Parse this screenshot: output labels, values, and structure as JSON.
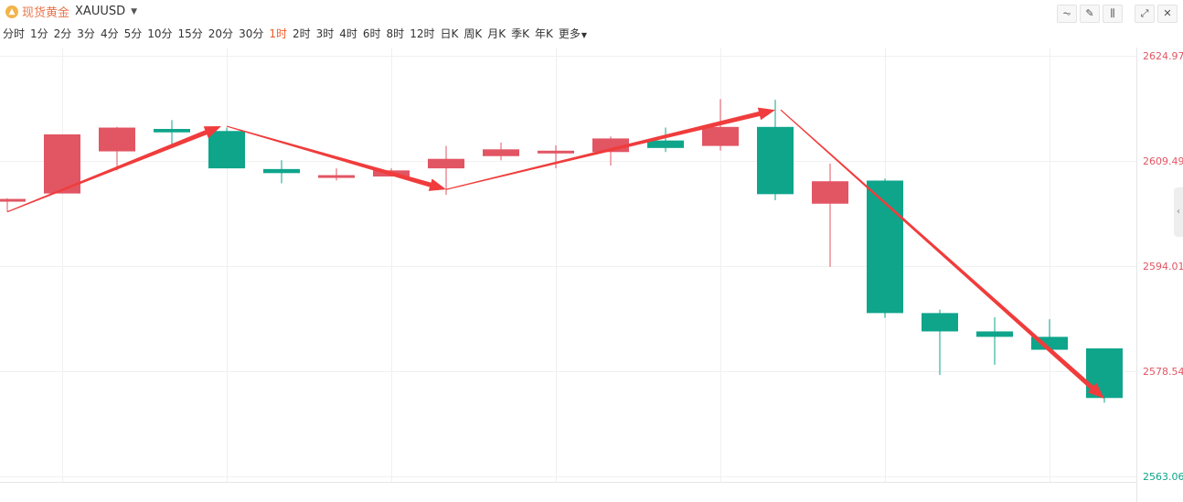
{
  "header": {
    "coin_icon": "gold-coin-icon",
    "instrument_cn": "现货黄金",
    "instrument_code": "XAUUSD",
    "tools": [
      "line-chart-icon",
      "draw-pen-icon",
      "candle-settings-icon",
      "expand-icon",
      "close-icon"
    ]
  },
  "periods": [
    "分时",
    "1分",
    "2分",
    "3分",
    "4分",
    "5分",
    "10分",
    "15分",
    "20分",
    "30分",
    "1时",
    "2时",
    "3时",
    "4时",
    "6时",
    "8时",
    "12时",
    "日K",
    "周K",
    "月K",
    "季K",
    "年K",
    "更多"
  ],
  "active_period": "1时",
  "colors": {
    "up": "#e25563",
    "down": "#0ea58b",
    "arrow": "#f03c3c",
    "active": "#f05a28"
  },
  "chart_data": {
    "type": "candlestick",
    "title": "",
    "xlabel": "",
    "ylabel": "",
    "ylim": [
      2563.06,
      2624.97
    ],
    "y_ticks": [
      "2624.97",
      "2609.49",
      "2594.01",
      "2578.54",
      "2563.06"
    ],
    "grid": true,
    "candles": [
      {
        "o": 2603.5,
        "h": 2604.0,
        "l": 2602.0,
        "c": 2603.9
      },
      {
        "o": 2604.7,
        "h": 2613.3,
        "l": 2604.7,
        "c": 2613.4
      },
      {
        "o": 2610.9,
        "h": 2614.5,
        "l": 2608.1,
        "c": 2614.4
      },
      {
        "o": 2614.2,
        "h": 2615.5,
        "l": 2611.9,
        "c": 2613.7
      },
      {
        "o": 2613.9,
        "h": 2614.4,
        "l": 2608.4,
        "c": 2608.4
      },
      {
        "o": 2608.3,
        "h": 2609.6,
        "l": 2606.2,
        "c": 2607.7
      },
      {
        "o": 2607.4,
        "h": 2608.4,
        "l": 2606.6,
        "c": 2607.4
      },
      {
        "o": 2607.2,
        "h": 2608.4,
        "l": 2607.2,
        "c": 2608.1
      },
      {
        "o": 2608.4,
        "h": 2611.7,
        "l": 2604.5,
        "c": 2609.8
      },
      {
        "o": 2610.2,
        "h": 2612.2,
        "l": 2609.6,
        "c": 2611.2
      },
      {
        "o": 2610.6,
        "h": 2611.8,
        "l": 2608.4,
        "c": 2611.0
      },
      {
        "o": 2610.8,
        "h": 2613.1,
        "l": 2608.8,
        "c": 2612.8
      },
      {
        "o": 2612.5,
        "h": 2614.4,
        "l": 2610.8,
        "c": 2611.4
      },
      {
        "o": 2611.7,
        "h": 2618.6,
        "l": 2611.0,
        "c": 2614.5
      },
      {
        "o": 2614.5,
        "h": 2618.5,
        "l": 2603.7,
        "c": 2604.6
      },
      {
        "o": 2603.2,
        "h": 2609.1,
        "l": 2593.9,
        "c": 2606.5
      },
      {
        "o": 2606.6,
        "h": 2606.9,
        "l": 2586.4,
        "c": 2587.1
      },
      {
        "o": 2587.1,
        "h": 2587.6,
        "l": 2578.0,
        "c": 2584.4
      },
      {
        "o": 2584.4,
        "h": 2586.5,
        "l": 2579.5,
        "c": 2583.6
      },
      {
        "o": 2583.6,
        "h": 2586.2,
        "l": 2581.8,
        "c": 2581.7
      },
      {
        "o": 2581.9,
        "h": 2581.9,
        "l": 2573.9,
        "c": 2574.6
      }
    ],
    "trend_arrows": [
      {
        "from": {
          "candle": 0,
          "price": 2602.0
        },
        "to": {
          "candle": 3.9,
          "price": 2614.6
        }
      },
      {
        "from": {
          "candle": 4,
          "price": 2614.6
        },
        "to": {
          "candle": 8,
          "price": 2605.3
        }
      },
      {
        "from": {
          "candle": 8,
          "price": 2605.3
        },
        "to": {
          "candle": 14,
          "price": 2617.0
        }
      },
      {
        "from": {
          "candle": 14.1,
          "price": 2617.0
        },
        "to": {
          "candle": 20,
          "price": 2574.5
        }
      }
    ]
  }
}
